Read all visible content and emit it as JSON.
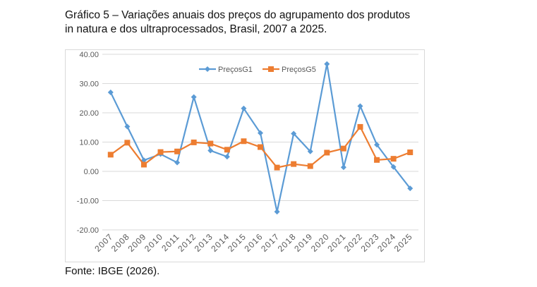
{
  "chart_data": {
    "type": "line",
    "title": "Gráfico 5 – Variações anuais dos preços do agrupamento dos produtos in natura e dos ultraprocessados, Brasil, 2007 a 2025.",
    "title_lines": [
      "Gráfico 5 – Variações anuais dos preços do agrupamento dos produtos",
      "in natura e dos ultraprocessados, Brasil, 2007 a 2025."
    ],
    "categories": [
      "2007",
      "2008",
      "2009",
      "2010",
      "2011",
      "2012",
      "2013",
      "2014",
      "2015",
      "2016",
      "2017",
      "2018",
      "2019",
      "2020",
      "2021",
      "2022",
      "2023",
      "2024",
      "2025"
    ],
    "series": [
      {
        "name": "PreçosG1",
        "color": "#5b9bd5",
        "marker": "diamond",
        "values": [
          27.0,
          15.3,
          3.8,
          5.9,
          3.0,
          25.4,
          7.1,
          5.0,
          21.5,
          13.1,
          -13.8,
          12.9,
          6.8,
          36.7,
          1.4,
          22.3,
          9.1,
          1.5,
          -5.8
        ]
      },
      {
        "name": "PreçosG5",
        "color": "#ed7d31",
        "marker": "square",
        "values": [
          5.7,
          9.8,
          2.3,
          6.6,
          6.8,
          9.9,
          9.5,
          7.4,
          10.3,
          8.3,
          1.3,
          2.5,
          1.8,
          6.4,
          7.8,
          15.2,
          3.9,
          4.3,
          6.5
        ]
      }
    ],
    "ylim": [
      -20,
      40
    ],
    "yticks": [
      "-20.00",
      "-10.00",
      "0.00",
      "10.00",
      "20.00",
      "30.00",
      "40.00"
    ],
    "grid": true,
    "legend": "top-center"
  },
  "source": "Fonte: IBGE (2026)."
}
